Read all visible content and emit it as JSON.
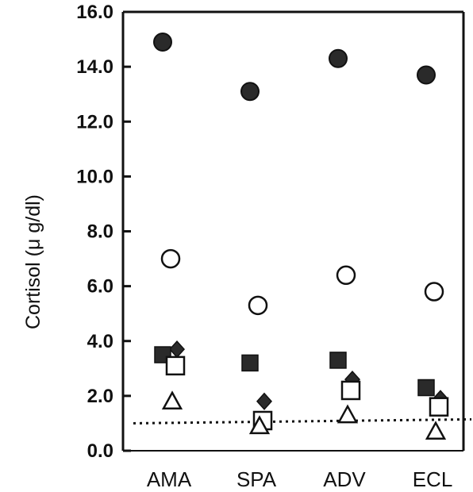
{
  "chart_data": {
    "type": "scatter",
    "ylabel": "Cortisol (μ g/dl)",
    "ylim": [
      0,
      16
    ],
    "yticks": [
      "0.0",
      "2.0",
      "4.0",
      "6.0",
      "8.0",
      "10.0",
      "12.0",
      "14.0",
      "16.0"
    ],
    "categories": [
      "AMA",
      "SPA",
      "ADV",
      "ECL"
    ],
    "reference_line": {
      "style": "dotted",
      "y": 1.0
    },
    "series": [
      {
        "marker": "filled-circle",
        "values": [
          14.9,
          13.1,
          14.3,
          13.7
        ]
      },
      {
        "marker": "open-circle",
        "values": [
          7.0,
          5.3,
          6.4,
          5.8
        ]
      },
      {
        "marker": "filled-diamond",
        "values": [
          3.7,
          1.8,
          2.6,
          1.9
        ]
      },
      {
        "marker": "filled-square",
        "values": [
          3.5,
          3.2,
          3.3,
          2.3
        ]
      },
      {
        "marker": "open-square",
        "values": [
          3.1,
          1.1,
          2.2,
          1.6
        ]
      },
      {
        "marker": "open-triangle",
        "values": [
          1.8,
          0.9,
          1.3,
          0.7
        ]
      }
    ],
    "grid": false,
    "legend": "none"
  }
}
